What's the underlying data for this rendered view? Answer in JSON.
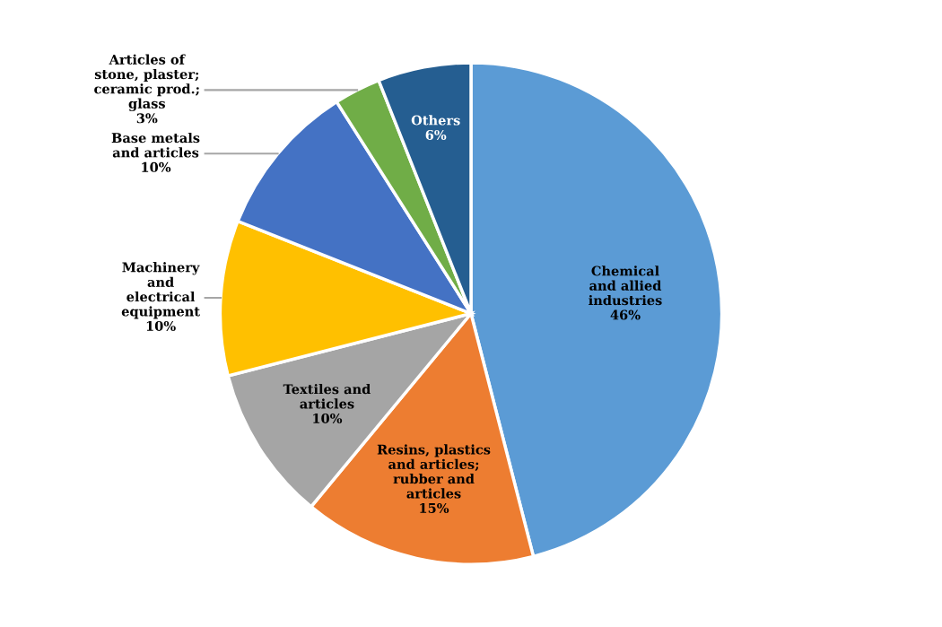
{
  "chart_data": {
    "type": "pie",
    "categories": [
      "Chemical\nand allied\nindustries",
      "Resins, plastics\nand articles;\nrubber and\narticles",
      "Textiles and\narticles",
      "Machinery\nand\nelectrical\nequipment",
      "Base metals\nand articles",
      "Articles of\nstone, plaster;\nceramic prod.;\nglass",
      "Others"
    ],
    "values": [
      46,
      15,
      10,
      10,
      10,
      3,
      6
    ],
    "colors": [
      "#5b9bd5",
      "#ed7d31",
      "#a5a5a5",
      "#ffc000",
      "#4472c4",
      "#70ad47",
      "#255e91"
    ],
    "value_labels": [
      "46%",
      "15%",
      "10%",
      "10%",
      "10%",
      "3%",
      "6%"
    ]
  }
}
